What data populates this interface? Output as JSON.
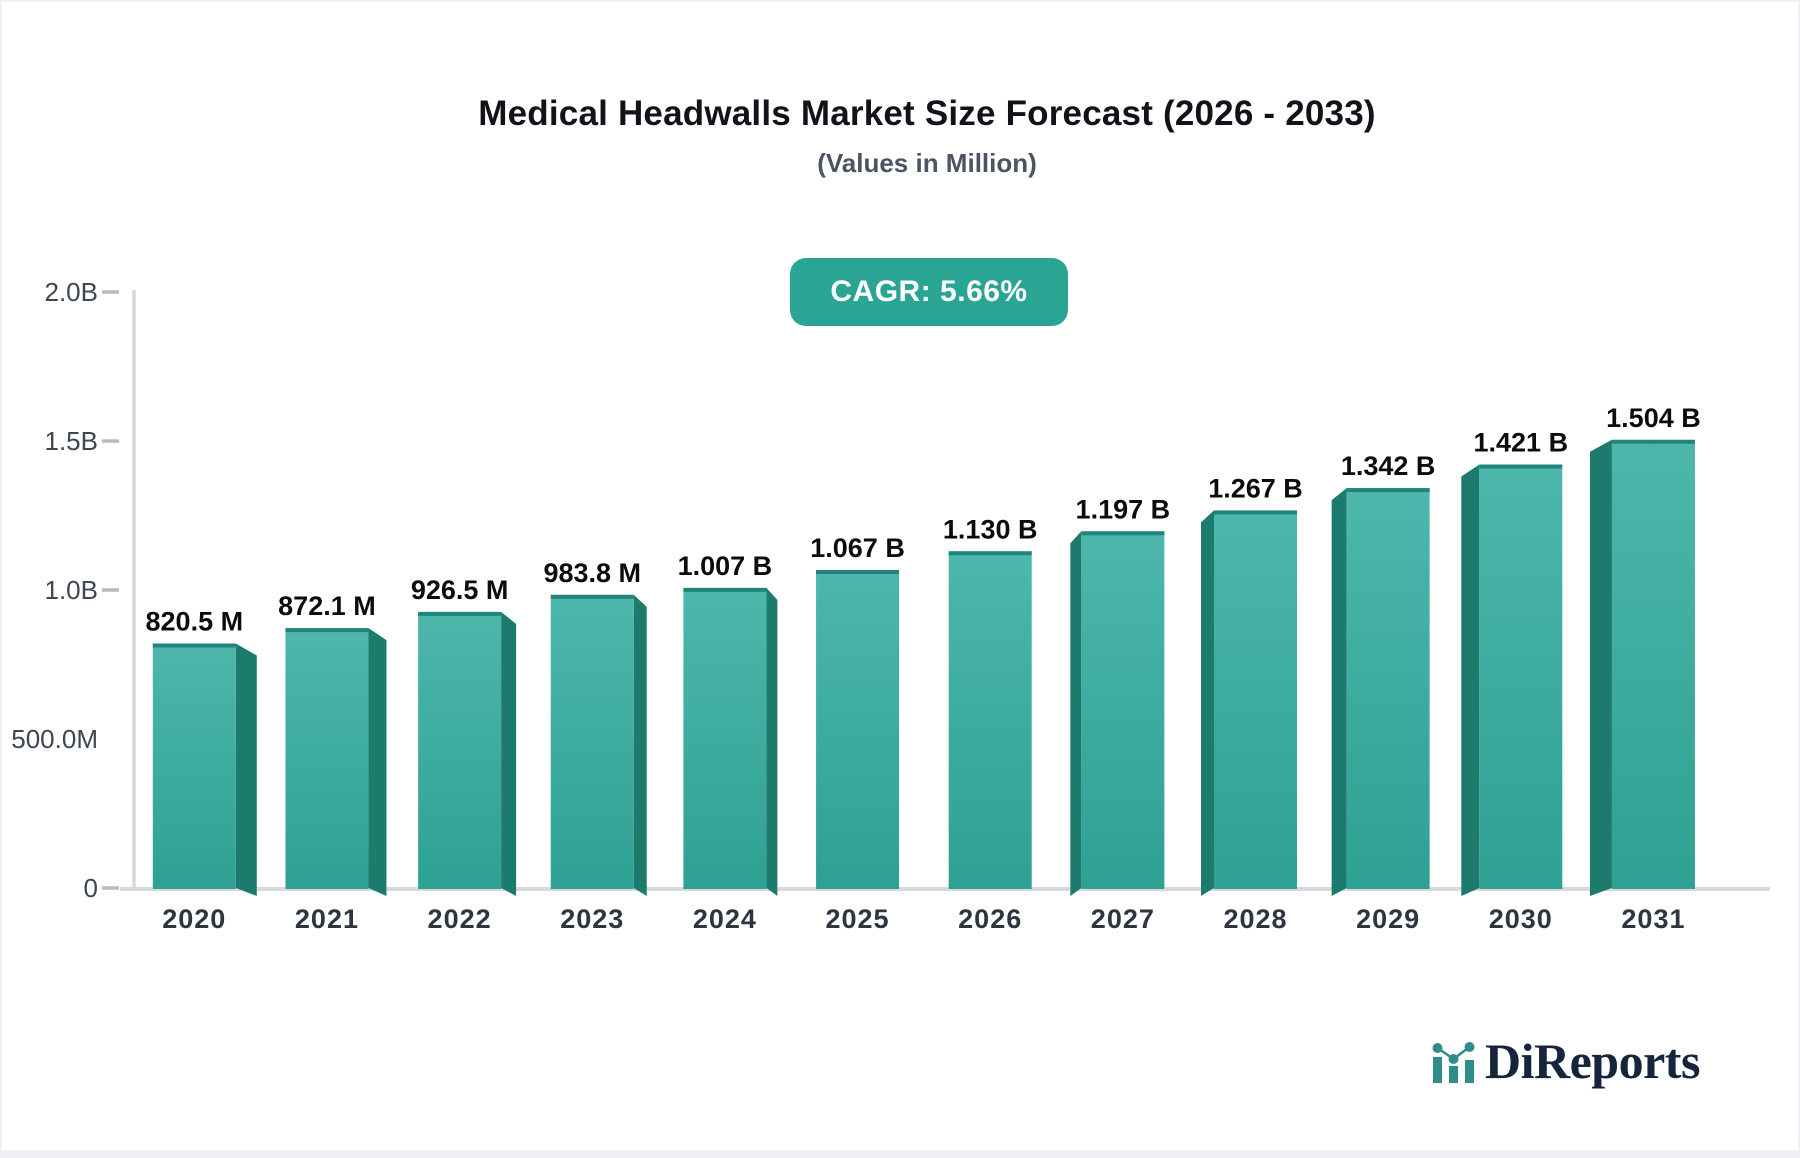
{
  "header": {
    "title": "Medical Headwalls Market Size Forecast (2026 - 2033)",
    "subtitle": "(Values in Million)"
  },
  "cagr_badge": {
    "label": "CAGR: 5.66%",
    "bg_color": "#2AA594"
  },
  "logo": {
    "brand": "DiReports",
    "icon": "bar-chart-trend-icon",
    "navy": "#16243C",
    "teal": "#2E8D89"
  },
  "chart_data": {
    "type": "bar",
    "title": "Medical Headwalls Market Size Forecast (2026 - 2033)",
    "subtitle": "(Values in Million)",
    "categories": [
      "2020",
      "2021",
      "2022",
      "2023",
      "2024",
      "2025",
      "2026",
      "2027",
      "2028",
      "2029",
      "2030",
      "2031"
    ],
    "values_millions": [
      820.5,
      872.1,
      926.5,
      983.8,
      1007,
      1067,
      1130,
      1197,
      1267,
      1342,
      1421,
      1504
    ],
    "bar_labels": [
      "820.5 M",
      "872.1 M",
      "926.5 M",
      "983.8 M",
      "1.007 B",
      "1.067 B",
      "1.130 B",
      "1.197 B",
      "1.267 B",
      "1.342 B",
      "1.421 B",
      "1.504 B"
    ],
    "y_axis": {
      "range_millions": [
        0,
        2000
      ],
      "ticks": [
        {
          "label": "2.0B",
          "value_millions": 2000,
          "dash": true
        },
        {
          "label": "1.5B",
          "value_millions": 1500,
          "dash": true
        },
        {
          "label": "1.0B",
          "value_millions": 1000,
          "dash": true
        },
        {
          "label": "500.0M",
          "value_millions": 500,
          "dash": false
        },
        {
          "label": "0",
          "value_millions": 0,
          "dash": true
        }
      ]
    },
    "grid": false,
    "legend": false,
    "style": "3d-perspective-columns",
    "bar_color_top": "#4DB7AB",
    "bar_color_bottom": "#2EA193",
    "bar_side_color": "#1D7B6E",
    "bar_top_edge_color": "#23857A",
    "axis_color": "#D7D9DE",
    "tick_color": "#B6BAC2"
  }
}
